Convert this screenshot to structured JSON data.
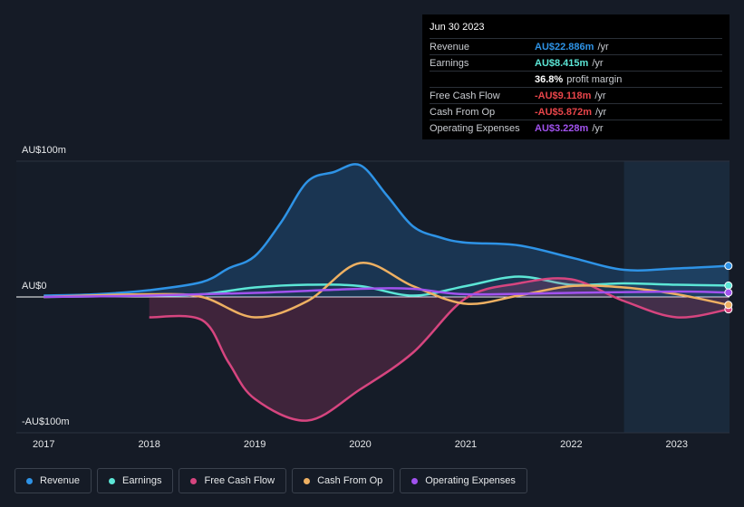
{
  "chart_data": {
    "type": "line",
    "xlim": [
      2016.74,
      2023.5
    ],
    "xticks": [
      2017,
      2018,
      2019,
      2020,
      2021,
      2022,
      2023
    ],
    "ylim": [
      -100,
      100
    ],
    "yticks": [
      {
        "value": 100,
        "label": "AU$100m"
      },
      {
        "value": 0,
        "label": "AU$0"
      },
      {
        "value": -100,
        "label": "-AU$100m"
      }
    ],
    "grid": true,
    "highlight_start": 2022.5,
    "series": [
      {
        "name": "Revenue",
        "color": "#2e93e6",
        "area": true,
        "x": [
          2017,
          2017.5,
          2018,
          2018.5,
          2018.75,
          2019,
          2019.25,
          2019.5,
          2019.75,
          2020,
          2020.25,
          2020.5,
          2020.75,
          2021,
          2021.5,
          2022,
          2022.5,
          2023,
          2023.49
        ],
        "values": [
          1,
          2,
          5,
          11,
          21,
          30,
          55,
          85,
          92,
          97,
          75,
          52,
          44,
          40,
          38,
          29,
          20,
          21,
          22.886
        ]
      },
      {
        "name": "Earnings",
        "color": "#5ce6d6",
        "x": [
          2017,
          2018,
          2018.5,
          2019,
          2019.5,
          2020,
          2020.5,
          2021,
          2021.5,
          2022,
          2022.5,
          2023,
          2023.49
        ],
        "values": [
          0,
          1,
          2,
          7,
          9,
          8,
          1,
          8,
          15,
          9,
          10,
          9,
          8.415
        ]
      },
      {
        "name": "Free Cash Flow",
        "color": "#d6457f",
        "area": true,
        "x": [
          2018,
          2018.5,
          2018.75,
          2019,
          2019.5,
          2020,
          2020.5,
          2021,
          2021.5,
          2022,
          2022.5,
          2023,
          2023.49
        ],
        "values": [
          -15,
          -17,
          -48,
          -75,
          -91,
          -68,
          -41,
          -1,
          10,
          13,
          -3,
          -15,
          -9.118
        ]
      },
      {
        "name": "Cash From Op",
        "color": "#eeb062",
        "x": [
          2017,
          2018,
          2018.5,
          2019,
          2019.5,
          2020,
          2020.5,
          2021,
          2021.5,
          2022,
          2022.5,
          2023,
          2023.49
        ],
        "values": [
          0,
          2,
          0,
          -15,
          -3,
          25,
          8,
          -5,
          1,
          8,
          7,
          2,
          -5.872
        ]
      },
      {
        "name": "Operating Expenses",
        "color": "#a152ee",
        "x": [
          2017,
          2018,
          2019,
          2020,
          2020.5,
          2021,
          2022,
          2023,
          2023.49
        ],
        "values": [
          0,
          1,
          3,
          6,
          6,
          2,
          3,
          4,
          3.228
        ]
      }
    ],
    "tooltip": {
      "title": "Jun 30 2023",
      "rows": [
        {
          "label": "Revenue",
          "value": "AU$22.886m",
          "unit": "/yr",
          "color": "#2e93e6"
        },
        {
          "label": "Earnings",
          "value": "AU$8.415m",
          "unit": "/yr",
          "color": "#5ce6d6"
        },
        {
          "label": "",
          "value": "36.8%",
          "unit": "profit margin",
          "color": "#ffffff"
        },
        {
          "label": "Free Cash Flow",
          "value": "-AU$9.118m",
          "unit": "/yr",
          "color": "#e8454a"
        },
        {
          "label": "Cash From Op",
          "value": "-AU$5.872m",
          "unit": "/yr",
          "color": "#e8454a"
        },
        {
          "label": "Operating Expenses",
          "value": "AU$3.228m",
          "unit": "/yr",
          "color": "#a152ee"
        }
      ]
    }
  }
}
